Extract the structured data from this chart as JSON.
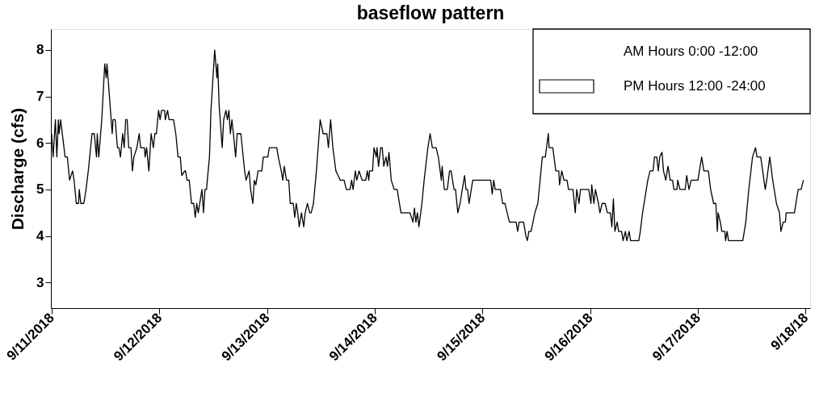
{
  "chart_data": {
    "type": "line",
    "title": "baseflow pattern",
    "ylabel": "Discharge (cfs)",
    "xlim": [
      "2018-09-10T23:50",
      "2018-09-18T01:00"
    ],
    "xticks": [
      {
        "value": "2018-09-11",
        "label": "9/11/2018"
      },
      {
        "value": "2018-09-12",
        "label": "9/12/2018"
      },
      {
        "value": "2018-09-13",
        "label": "9/13/2018"
      },
      {
        "value": "2018-09-14",
        "label": "9/14/2018"
      },
      {
        "value": "2018-09-15",
        "label": "9/15/2018"
      },
      {
        "value": "2018-09-16",
        "label": "9/16/2018"
      },
      {
        "value": "2018-09-17",
        "label": "9/17/2018"
      },
      {
        "value": "2018-09-18",
        "label": "9/18/18"
      }
    ],
    "ylim": [
      2.45,
      8.45
    ],
    "yticks": [
      3,
      4,
      5,
      6,
      7,
      8
    ],
    "grid": false,
    "annotations": [
      "AM Hours 0:00 -12:00",
      "PM Hours 12:00 -24:00"
    ],
    "series": [
      {
        "color": "#000000",
        "x": [
          "2018-09-11T00:00",
          "2018-09-11T00:20",
          "2018-09-11T00:50",
          "2018-09-11T01:10",
          "2018-09-11T01:30",
          "2018-09-11T01:40",
          "2018-09-11T02:00",
          "2018-09-11T03:00",
          "2018-09-11T03:30",
          "2018-09-11T04:00",
          "2018-09-11T04:40",
          "2018-09-11T05:00",
          "2018-09-11T05:30",
          "2018-09-11T06:00",
          "2018-09-11T06:10",
          "2018-09-11T06:30",
          "2018-09-11T07:10",
          "2018-09-11T07:40",
          "2018-09-11T08:10",
          "2018-09-11T09:00",
          "2018-09-11T09:30",
          "2018-09-11T10:00",
          "2018-09-11T10:10",
          "2018-09-11T10:30",
          "2018-09-11T11:10",
          "2018-09-11T11:50",
          "2018-09-11T12:10",
          "2018-09-11T12:20",
          "2018-09-11T13:30",
          "2018-09-11T13:40",
          "2018-09-11T14:10",
          "2018-09-11T14:40",
          "2018-09-11T15:00",
          "2018-09-11T15:20",
          "2018-09-11T15:50",
          "2018-09-11T16:10",
          "2018-09-11T16:30",
          "2018-09-11T16:50",
          "2018-09-11T17:10",
          "2018-09-11T17:40",
          "2018-09-11T18:00",
          "2018-09-11T18:20",
          "2018-09-11T19:00",
          "2018-09-11T19:30",
          "2018-09-11T19:50",
          "2018-09-11T20:40",
          "2018-09-11T20:50",
          "2018-09-11T21:10",
          "2018-09-11T21:40",
          "2018-09-11T22:10",
          "2018-09-11T22:40",
          "2018-09-11T23:00",
          "2018-09-11T23:20",
          "2018-09-11T23:50",
          "2018-09-12T00:10",
          "2018-09-12T00:30",
          "2018-09-12T01:10",
          "2018-09-12T01:20",
          "2018-09-12T01:50",
          "2018-09-12T02:10",
          "2018-09-12T03:10",
          "2018-09-12T03:40",
          "2018-09-12T04:10",
          "2018-09-12T04:40",
          "2018-09-12T05:00",
          "2018-09-12T05:40",
          "2018-09-12T05:50",
          "2018-09-12T06:10",
          "2018-09-12T06:40",
          "2018-09-12T07:10",
          "2018-09-12T07:40",
          "2018-09-12T08:00",
          "2018-09-12T08:20",
          "2018-09-12T08:40",
          "2018-09-12T09:00",
          "2018-09-12T09:30",
          "2018-09-12T09:50",
          "2018-09-12T10:10",
          "2018-09-12T10:30",
          "2018-09-12T11:10",
          "2018-09-12T11:30",
          "2018-09-12T12:20",
          "2018-09-12T12:50",
          "2018-09-12T13:00",
          "2018-09-12T13:20",
          "2018-09-12T14:00",
          "2018-09-12T14:20",
          "2018-09-12T14:50",
          "2018-09-12T15:10",
          "2018-09-12T15:30",
          "2018-09-12T15:50",
          "2018-09-12T16:10",
          "2018-09-12T16:30",
          "2018-09-12T17:00",
          "2018-09-12T17:20",
          "2018-09-12T18:10",
          "2018-09-12T19:00",
          "2018-09-12T19:20",
          "2018-09-12T20:00",
          "2018-09-12T20:20",
          "2018-09-12T20:50",
          "2018-09-12T21:10",
          "2018-09-12T21:30",
          "2018-09-12T22:00",
          "2018-09-12T22:50",
          "2018-09-12T23:10",
          "2018-09-13T00:10",
          "2018-09-13T00:30",
          "2018-09-13T02:10",
          "2018-09-13T02:30",
          "2018-09-13T03:10",
          "2018-09-13T03:30",
          "2018-09-13T03:50",
          "2018-09-13T04:20",
          "2018-09-13T04:50",
          "2018-09-13T05:10",
          "2018-09-13T05:50",
          "2018-09-13T06:10",
          "2018-09-13T06:30",
          "2018-09-13T06:50",
          "2018-09-13T07:10",
          "2018-09-13T07:40",
          "2018-09-13T08:10",
          "2018-09-13T08:30",
          "2018-09-13T09:00",
          "2018-09-13T09:30",
          "2018-09-13T09:50",
          "2018-09-13T10:20",
          "2018-09-13T11:00",
          "2018-09-13T11:50",
          "2018-09-13T12:30",
          "2018-09-13T13:20",
          "2018-09-13T13:40",
          "2018-09-13T14:10",
          "2018-09-13T14:40",
          "2018-09-13T15:20",
          "2018-09-13T16:20",
          "2018-09-13T17:10",
          "2018-09-13T17:40",
          "2018-09-13T18:30",
          "2018-09-13T18:50",
          "2018-09-13T19:10",
          "2018-09-13T19:40",
          "2018-09-13T20:00",
          "2018-09-13T20:30",
          "2018-09-13T21:10",
          "2018-09-13T22:00",
          "2018-09-13T22:20",
          "2018-09-13T22:40",
          "2018-09-13T22:50",
          "2018-09-13T23:30",
          "2018-09-13T23:50",
          "2018-09-14T00:20",
          "2018-09-14T00:30",
          "2018-09-14T00:50",
          "2018-09-14T01:20",
          "2018-09-14T01:40",
          "2018-09-14T02:00",
          "2018-09-14T02:30",
          "2018-09-14T02:50",
          "2018-09-14T03:10",
          "2018-09-14T03:40",
          "2018-09-14T04:20",
          "2018-09-14T05:00",
          "2018-09-14T05:50",
          "2018-09-14T07:50",
          "2018-09-14T08:30",
          "2018-09-14T08:50",
          "2018-09-14T09:10",
          "2018-09-14T09:30",
          "2018-09-14T09:50",
          "2018-09-14T10:30",
          "2018-09-14T11:00",
          "2018-09-14T11:50",
          "2018-09-14T12:20",
          "2018-09-14T12:50",
          "2018-09-14T13:40",
          "2018-09-14T14:10",
          "2018-09-14T14:50",
          "2018-09-14T15:00",
          "2018-09-14T15:30",
          "2018-09-14T16:10",
          "2018-09-14T16:40",
          "2018-09-14T17:00",
          "2018-09-14T17:40",
          "2018-09-14T18:00",
          "2018-09-14T18:30",
          "2018-09-14T19:00",
          "2018-09-14T19:30",
          "2018-09-14T20:00",
          "2018-09-14T20:20",
          "2018-09-14T20:40",
          "2018-09-14T21:00",
          "2018-09-14T21:30",
          "2018-09-14T21:50",
          "2018-09-15T01:50",
          "2018-09-15T02:10",
          "2018-09-15T02:30",
          "2018-09-15T02:50",
          "2018-09-15T04:00",
          "2018-09-15T04:30",
          "2018-09-15T05:00",
          "2018-09-15T05:30",
          "2018-09-15T06:00",
          "2018-09-15T07:30",
          "2018-09-15T07:50",
          "2018-09-15T08:10",
          "2018-09-15T09:10",
          "2018-09-15T09:40",
          "2018-09-15T10:00",
          "2018-09-15T10:20",
          "2018-09-15T10:50",
          "2018-09-15T11:40",
          "2018-09-15T12:20",
          "2018-09-15T13:20",
          "2018-09-15T14:00",
          "2018-09-15T14:40",
          "2018-09-15T14:50",
          "2018-09-15T15:40",
          "2018-09-15T16:20",
          "2018-09-15T17:00",
          "2018-09-15T17:10",
          "2018-09-15T17:40",
          "2018-09-15T18:10",
          "2018-09-15T18:50",
          "2018-09-15T19:10",
          "2018-09-15T20:10",
          "2018-09-15T20:40",
          "2018-09-15T21:00",
          "2018-09-15T21:30",
          "2018-09-15T21:50",
          "2018-09-15T23:40",
          "2018-09-16T00:10",
          "2018-09-16T00:20",
          "2018-09-16T00:50",
          "2018-09-16T01:10",
          "2018-09-16T01:50",
          "2018-09-16T02:10",
          "2018-09-16T02:40",
          "2018-09-16T03:20",
          "2018-09-16T03:50",
          "2018-09-16T04:30",
          "2018-09-16T04:50",
          "2018-09-16T05:10",
          "2018-09-16T05:30",
          "2018-09-16T06:00",
          "2018-09-16T06:20",
          "2018-09-16T07:00",
          "2018-09-16T07:20",
          "2018-09-16T07:50",
          "2018-09-16T08:10",
          "2018-09-16T08:40",
          "2018-09-16T09:00",
          "2018-09-16T10:50",
          "2018-09-16T11:10",
          "2018-09-16T11:40",
          "2018-09-16T12:50",
          "2018-09-16T13:20",
          "2018-09-16T14:00",
          "2018-09-16T14:20",
          "2018-09-16T14:50",
          "2018-09-16T15:10",
          "2018-09-16T15:30",
          "2018-09-16T16:00",
          "2018-09-16T16:20",
          "2018-09-16T16:50",
          "2018-09-16T17:20",
          "2018-09-16T17:50",
          "2018-09-16T18:20",
          "2018-09-16T18:40",
          "2018-09-16T19:20",
          "2018-09-16T19:30",
          "2018-09-16T20:00",
          "2018-09-16T21:10",
          "2018-09-16T21:30",
          "2018-09-16T22:00",
          "2018-09-16T22:30",
          "2018-09-17T00:00",
          "2018-09-17T00:20",
          "2018-09-17T00:50",
          "2018-09-17T01:20",
          "2018-09-17T02:20",
          "2018-09-17T02:50",
          "2018-09-17T03:30",
          "2018-09-17T04:00",
          "2018-09-17T04:20",
          "2018-09-17T04:30",
          "2018-09-17T05:00",
          "2018-09-17T05:20",
          "2018-09-17T06:00",
          "2018-09-17T06:10",
          "2018-09-17T06:30",
          "2018-09-17T06:50",
          "2018-09-17T10:00",
          "2018-09-17T10:20",
          "2018-09-17T10:40",
          "2018-09-17T11:20",
          "2018-09-17T12:10",
          "2018-09-17T12:50",
          "2018-09-17T13:10",
          "2018-09-17T14:00",
          "2018-09-17T15:00",
          "2018-09-17T15:20",
          "2018-09-17T16:00",
          "2018-09-17T16:40",
          "2018-09-17T17:30",
          "2018-09-17T18:10",
          "2018-09-17T18:30",
          "2018-09-17T19:00",
          "2018-09-17T19:30",
          "2018-09-17T19:40",
          "2018-09-17T21:30",
          "2018-09-17T21:50",
          "2018-09-17T22:20",
          "2018-09-17T23:00",
          "2018-09-17T23:30"
        ],
        "values": [
          6.2,
          5.7,
          6.5,
          5.7,
          6.5,
          6.2,
          6.5,
          5.7,
          5.7,
          5.2,
          5.4,
          5.2,
          4.7,
          4.7,
          5.0,
          4.7,
          4.7,
          5.0,
          5.4,
          6.2,
          6.2,
          5.7,
          6.2,
          5.7,
          6.5,
          7.7,
          7.4,
          7.7,
          6.2,
          6.5,
          6.5,
          5.9,
          5.9,
          5.7,
          6.2,
          5.9,
          6.5,
          6.5,
          5.9,
          5.9,
          5.4,
          5.7,
          5.9,
          6.2,
          5.9,
          5.9,
          5.7,
          5.9,
          5.4,
          6.2,
          5.9,
          6.2,
          6.2,
          6.7,
          6.5,
          6.7,
          6.7,
          6.5,
          6.7,
          6.5,
          6.5,
          6.2,
          5.7,
          5.7,
          5.3,
          5.4,
          5.4,
          5.2,
          5.2,
          4.7,
          4.7,
          4.4,
          4.7,
          4.5,
          4.7,
          5.0,
          4.5,
          5.0,
          5.0,
          5.7,
          6.7,
          8.0,
          7.4,
          7.7,
          6.8,
          5.9,
          6.5,
          6.7,
          6.5,
          6.7,
          6.2,
          6.5,
          6.2,
          5.7,
          6.2,
          6.2,
          5.4,
          5.2,
          5.4,
          5.0,
          4.7,
          5.2,
          5.1,
          5.4,
          5.4,
          5.7,
          5.7,
          5.9,
          5.9,
          5.7,
          5.4,
          5.2,
          5.5,
          5.2,
          5.2,
          4.7,
          4.7,
          4.4,
          4.7,
          4.5,
          4.2,
          4.5,
          4.2,
          4.5,
          4.7,
          4.5,
          4.5,
          4.7,
          5.4,
          6.5,
          6.2,
          6.2,
          5.9,
          6.5,
          5.9,
          5.4,
          5.2,
          5.2,
          5.0,
          5.0,
          5.2,
          5.0,
          5.4,
          5.2,
          5.4,
          5.2,
          5.2,
          5.4,
          5.2,
          5.4,
          5.4,
          5.9,
          5.7,
          5.9,
          5.5,
          5.9,
          5.9,
          5.5,
          5.7,
          5.5,
          5.8,
          5.2,
          5.0,
          5.0,
          4.5,
          4.5,
          4.3,
          4.6,
          4.3,
          4.5,
          4.2,
          4.7,
          5.2,
          5.9,
          6.2,
          5.9,
          5.9,
          5.7,
          5.2,
          5.5,
          5.0,
          5.0,
          5.4,
          5.4,
          5.0,
          5.0,
          4.5,
          4.7,
          5.0,
          5.3,
          5.0,
          5.0,
          4.7,
          5.0,
          5.2,
          5.2,
          4.9,
          5.2,
          5.0,
          5.0,
          4.7,
          4.7,
          4.5,
          4.3,
          4.3,
          4.1,
          4.3,
          4.3,
          4.0,
          3.9,
          4.1,
          4.1,
          4.5,
          4.7,
          5.7,
          5.7,
          6.2,
          5.9,
          5.9,
          5.4,
          5.4,
          5.1,
          5.4,
          5.2,
          5.2,
          5.0,
          5.0,
          4.5,
          5.0,
          4.7,
          5.0,
          5.0,
          4.7,
          5.1,
          4.7,
          5.0,
          4.7,
          4.5,
          4.7,
          4.7,
          4.5,
          4.5,
          4.2,
          4.8,
          4.1,
          4.3,
          4.1,
          4.1,
          3.9,
          4.1,
          3.9,
          4.1,
          3.9,
          3.9,
          4.1,
          4.5,
          5.2,
          5.4,
          5.4,
          5.7,
          5.7,
          5.4,
          5.7,
          5.8,
          5.4,
          5.2,
          5.5,
          5.2,
          5.2,
          5.0,
          5.0,
          5.2,
          5.0,
          5.0,
          5.3,
          5.0,
          5.2,
          5.2,
          5.4,
          5.7,
          5.4,
          5.4,
          5.0,
          4.7,
          4.7,
          4.1,
          4.5,
          4.3,
          4.1,
          4.1,
          3.9,
          4.1,
          3.9,
          3.9,
          4.1,
          4.3,
          5.0,
          5.7,
          5.9,
          5.7,
          5.7,
          5.0,
          5.2,
          5.7,
          5.2,
          4.7,
          4.5,
          4.1,
          4.3,
          4.3,
          4.5,
          4.5,
          4.7,
          5.0,
          5.0,
          5.2
        ]
      }
    ]
  }
}
